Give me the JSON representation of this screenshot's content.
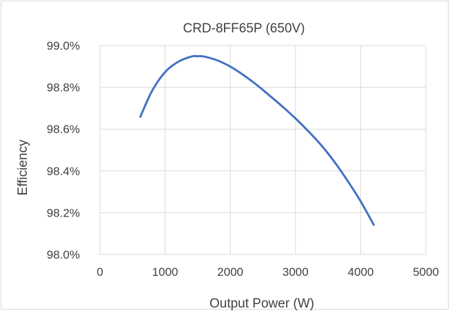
{
  "chart_data": {
    "type": "line",
    "title": "CRD-8FF65P (650V)",
    "xlabel": "Output Power (W)",
    "ylabel": "Efficiency",
    "xlim": [
      0,
      5000
    ],
    "ylim": [
      0.98,
      0.99
    ],
    "x_ticks": [
      "0",
      "1000",
      "2000",
      "3000",
      "4000",
      "5000"
    ],
    "y_ticks": [
      "98.0%",
      "98.2%",
      "98.4%",
      "98.6%",
      "98.8%",
      "99.0%"
    ],
    "grid": {
      "vertical": true,
      "horizontal": true
    },
    "legend": "none",
    "series": [
      {
        "color": "#4472c4",
        "x": [
          620,
          800,
          1000,
          1200,
          1400,
          1500,
          1600,
          1800,
          2000,
          2200,
          2400,
          2600,
          2800,
          3000,
          3200,
          3400,
          3600,
          3800,
          4000,
          4200
        ],
        "y": [
          0.98659,
          0.98783,
          0.98873,
          0.98922,
          0.98947,
          0.98949,
          0.98947,
          0.98929,
          0.98899,
          0.98859,
          0.98813,
          0.98761,
          0.98708,
          0.98651,
          0.98589,
          0.98521,
          0.98442,
          0.98352,
          0.98254,
          0.98142
        ]
      }
    ]
  }
}
